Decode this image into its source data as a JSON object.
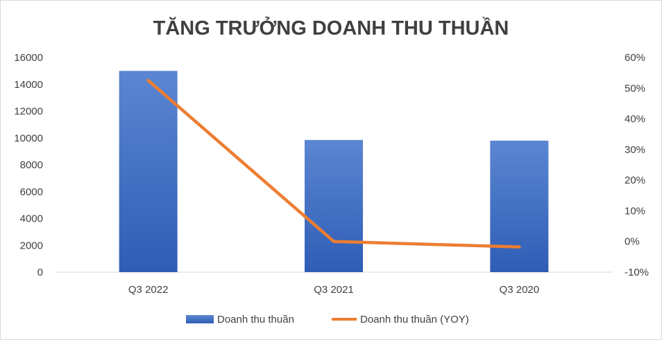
{
  "chart_data": {
    "type": "bar",
    "title": "TĂNG TRƯỞNG DOANH THU THUẦN",
    "categories": [
      "Q3 2022",
      "Q3 2021",
      "Q3 2020"
    ],
    "series": [
      {
        "name": "Doanh thu thuần",
        "type": "bar",
        "axis": "left",
        "values": [
          15000,
          9850,
          9800
        ],
        "color": "#4472C4"
      },
      {
        "name": "Doanh thu thuần (YOY)",
        "type": "line",
        "axis": "right",
        "values": [
          52.5,
          0,
          -1.8
        ],
        "color": "#ED7D31"
      }
    ],
    "y_left": {
      "ylim": [
        0,
        16000
      ],
      "ticks": [
        "0",
        "2000",
        "4000",
        "6000",
        "8000",
        "10000",
        "12000",
        "14000",
        "16000"
      ]
    },
    "y_right": {
      "ylim": [
        -10,
        60
      ],
      "ticks": [
        "-10%",
        "0%",
        "10%",
        "20%",
        "30%",
        "40%",
        "50%",
        "60%"
      ]
    },
    "legend_position": "bottom",
    "grid": false
  }
}
